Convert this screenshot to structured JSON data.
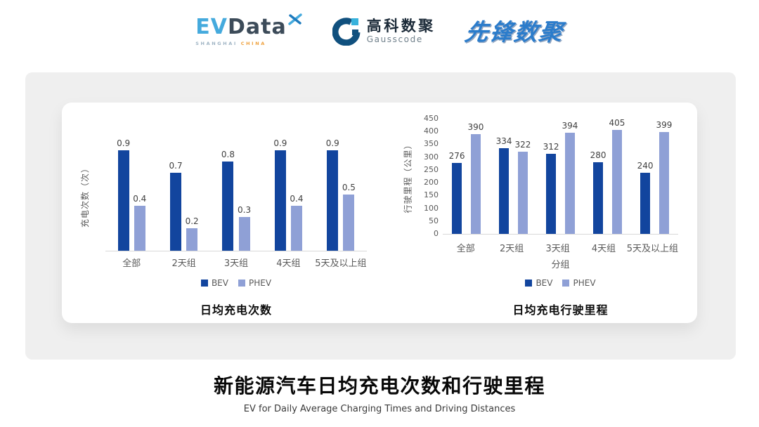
{
  "header": {
    "evdata": {
      "ev": "EV",
      "data": "Data",
      "sub_left": "SHANGHAI",
      "sub_right": "CHINA"
    },
    "gausscode": {
      "cn": "高科数聚",
      "en": "Gausscode"
    },
    "pioneer": {
      "text": "先锋数聚"
    }
  },
  "caption": {
    "title_cn": "新能源汽车日均充电次数和行驶里程",
    "subtitle_en": "EV for Daily Average Charging Times and Driving Distances"
  },
  "colors": {
    "bev": "#12459E",
    "phev": "#8FA0D6",
    "evdata_blue": "#45AADD",
    "evdata_dark": "#3C4B59",
    "evdata_orange": "#EFA23F",
    "gausscode_navy": "#10507E",
    "gausscode_light": "#38B2DC",
    "pioneer_blue": "#2B7CCB",
    "panel_gray": "#EFEFEF"
  },
  "chart_data": [
    {
      "type": "bar",
      "title": "日均充电次数",
      "ylabel": "充电次数（次）",
      "xlabel": "",
      "categories": [
        "全部",
        "2天组",
        "3天组",
        "4天组",
        "5天及以上组"
      ],
      "series": [
        {
          "name": "BEV",
          "values": [
            0.9,
            0.7,
            0.8,
            0.9,
            0.9
          ]
        },
        {
          "name": "PHEV",
          "values": [
            0.4,
            0.2,
            0.3,
            0.4,
            0.5
          ]
        }
      ],
      "ylim": [
        0,
        1.0
      ],
      "yticks": [],
      "grid": false,
      "legend_position": "bottom",
      "value_labels": true
    },
    {
      "type": "bar",
      "title": "日均充电行驶里程",
      "ylabel": "行驶里程（公里）",
      "xlabel": "分组",
      "categories": [
        "全部",
        "2天组",
        "3天组",
        "4天组",
        "5天及以上组"
      ],
      "series": [
        {
          "name": "BEV",
          "values": [
            276,
            334,
            312,
            280,
            240
          ]
        },
        {
          "name": "PHEV",
          "values": [
            390,
            322,
            394,
            405,
            399
          ]
        }
      ],
      "ylim": [
        0,
        450
      ],
      "yticks": [
        0,
        50,
        100,
        150,
        200,
        250,
        300,
        350,
        400,
        450
      ],
      "grid": false,
      "legend_position": "bottom",
      "value_labels": true
    }
  ]
}
